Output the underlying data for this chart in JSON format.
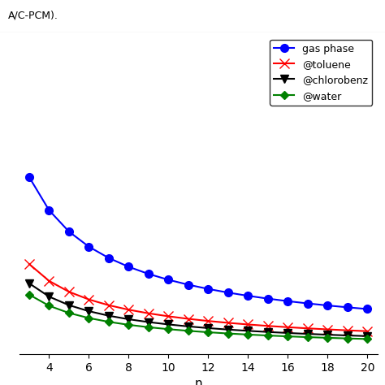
{
  "xlabel": "n",
  "x_start": 3,
  "x_end": 20,
  "xlim": [
    2.5,
    20.5
  ],
  "xticks": [
    4,
    6,
    8,
    10,
    12,
    14,
    16,
    18,
    20
  ],
  "series": [
    {
      "label": "gas phase",
      "color": "blue",
      "marker": "o",
      "ms": 7,
      "lw": 1.5,
      "a": 5.5,
      "b": 0.72
    },
    {
      "label": "@toluene",
      "color": "red",
      "marker": "x",
      "ms": 8,
      "lw": 1.5,
      "a": 2.8,
      "b": 0.72
    },
    {
      "label": "@chlorobenz",
      "color": "black",
      "marker": "v",
      "ms": 7,
      "lw": 1.5,
      "a": 2.2,
      "b": 0.72
    },
    {
      "label": "@water",
      "color": "green",
      "marker": "D",
      "ms": 5,
      "lw": 1.5,
      "a": 1.85,
      "b": 0.72
    }
  ],
  "header_text": "A/C-PCM).",
  "header_fontsize": 9,
  "legend_loc": "upper right",
  "legend_fontsize": 9,
  "xlabel_fontsize": 11,
  "ylim_top": 4.5,
  "ylim_bottom": 0.0
}
